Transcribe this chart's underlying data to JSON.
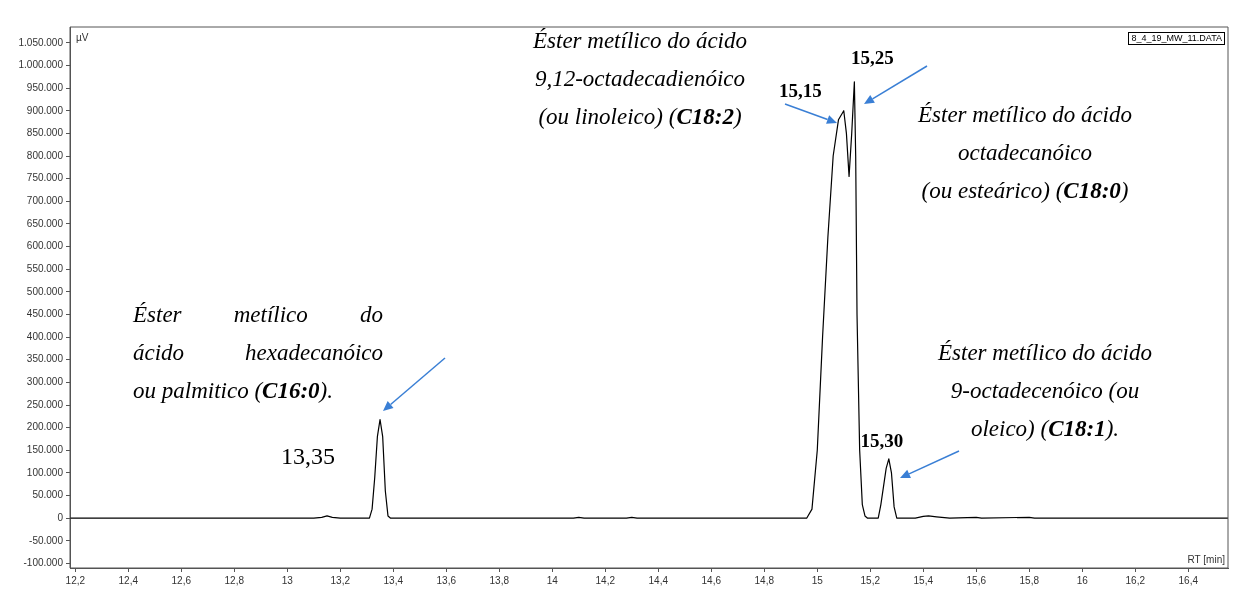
{
  "chart_data": {
    "type": "line",
    "xlabel": "RT [min]",
    "ylabel": "µV",
    "xlim": [
      12.18,
      16.55
    ],
    "ylim": [
      -110000,
      1085000
    ],
    "xticks": [
      {
        "value": 12.2,
        "label": "12,2"
      },
      {
        "value": 12.4,
        "label": "12,4"
      },
      {
        "value": 12.6,
        "label": "12,6"
      },
      {
        "value": 12.8,
        "label": "12,8"
      },
      13,
      {
        "value": 13.2,
        "label": "13,2"
      },
      {
        "value": 13.4,
        "label": "13,4"
      },
      {
        "value": 13.6,
        "label": "13,6"
      },
      {
        "value": 13.8,
        "label": "13,8"
      },
      14,
      {
        "value": 14.2,
        "label": "14,2"
      },
      {
        "value": 14.4,
        "label": "14,4"
      },
      {
        "value": 14.6,
        "label": "14,6"
      },
      {
        "value": 14.8,
        "label": "14,8"
      },
      15,
      {
        "value": 15.2,
        "label": "15,2"
      },
      {
        "value": 15.4,
        "label": "15,4"
      },
      {
        "value": 15.6,
        "label": "15,6"
      },
      {
        "value": 15.8,
        "label": "15,8"
      },
      16,
      {
        "value": 16.2,
        "label": "16,2"
      },
      {
        "value": 16.4,
        "label": "16,4"
      }
    ],
    "yticks": [
      {
        "value": -100000,
        "label": "-100.000"
      },
      {
        "value": -50000,
        "label": "-50.000"
      },
      0,
      {
        "value": 50000,
        "label": "50.000"
      },
      {
        "value": 100000,
        "label": "100.000"
      },
      {
        "value": 150000,
        "label": "150.000"
      },
      {
        "value": 200000,
        "label": "200.000"
      },
      {
        "value": 250000,
        "label": "250.000"
      },
      {
        "value": 300000,
        "label": "300.000"
      },
      {
        "value": 350000,
        "label": "350.000"
      },
      {
        "value": 400000,
        "label": "400.000"
      },
      {
        "value": 450000,
        "label": "450.000"
      },
      {
        "value": 500000,
        "label": "500.000"
      },
      {
        "value": 550000,
        "label": "550.000"
      },
      {
        "value": 600000,
        "label": "600.000"
      },
      {
        "value": 650000,
        "label": "650.000"
      },
      {
        "value": 700000,
        "label": "700.000"
      },
      {
        "value": 750000,
        "label": "750.000"
      },
      {
        "value": 800000,
        "label": "800.000"
      },
      {
        "value": 850000,
        "label": "850.000"
      },
      {
        "value": 900000,
        "label": "900.000"
      },
      {
        "value": 950000,
        "label": "950.000"
      },
      {
        "value": 1000000,
        "label": "1.000.000"
      },
      {
        "value": 1050000,
        "label": "1.050.000"
      }
    ],
    "series": [
      {
        "color": "#000000",
        "x": [
          12.18,
          13.1,
          13.13,
          13.15,
          13.17,
          13.2,
          13.31,
          13.32,
          13.33,
          13.34,
          13.35,
          13.36,
          13.37,
          13.38,
          13.39,
          14.08,
          14.1,
          14.12,
          14.28,
          14.3,
          14.32,
          14.96,
          14.98,
          15.0,
          15.02,
          15.04,
          15.06,
          15.08,
          15.1,
          15.11,
          15.12,
          15.13,
          15.14,
          15.145,
          15.15,
          15.16,
          15.17,
          15.18,
          15.19,
          15.23,
          15.24,
          15.26,
          15.27,
          15.28,
          15.29,
          15.3,
          15.37,
          15.4,
          15.42,
          15.45,
          15.5,
          15.6,
          15.62,
          15.8,
          15.82,
          16.55
        ],
        "values": [
          0,
          0,
          2000,
          5000,
          2000,
          0,
          0,
          20000,
          90000,
          180000,
          218000,
          180000,
          60000,
          5000,
          0,
          0,
          2000,
          0,
          0,
          2000,
          0,
          0,
          20000,
          150000,
          400000,
          620000,
          800000,
          880000,
          900000,
          850000,
          755000,
          850000,
          964000,
          800000,
          450000,
          150000,
          30000,
          5000,
          0,
          0,
          30000,
          110000,
          131000,
          100000,
          25000,
          0,
          0,
          4000,
          5000,
          3000,
          0,
          2000,
          0,
          2000,
          0,
          0
        ]
      }
    ],
    "marker": "none",
    "line_style": "solid",
    "annotations": [
      "8_4_19_MW_11.DATA",
      "Éster metílico do ácido hexadecanóico ou palmitico (C16:0).",
      "Éster metílico do ácido 9,12-octadecadienóico (ou linoleico) (C18:2)",
      "Éster metílico do ácido octadecanóico (ou esteárico) (C18:0)",
      "Éster metílico do ácido 9-octadecenóico (ou oleico) (C18:1).",
      {
        "text": "13,35",
        "x": 13.35,
        "y": 218000
      },
      {
        "text": "15,15",
        "x": 15.1,
        "y": 900000
      },
      {
        "text": "15,25",
        "x": 15.14,
        "y": 964000
      },
      {
        "text": "15,30",
        "x": 15.27,
        "y": 131000
      }
    ]
  }
}
